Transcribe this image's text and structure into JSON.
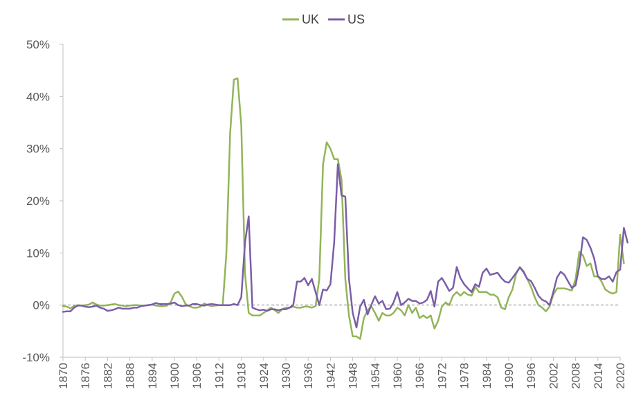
{
  "chart_data": {
    "type": "line",
    "title": "",
    "xlabel": "",
    "ylabel": "",
    "xlim": [
      1870,
      2020
    ],
    "ylim": [
      -10,
      50
    ],
    "y_ticks": [
      -10,
      0,
      10,
      20,
      30,
      40,
      50
    ],
    "y_tick_labels": [
      "-10%",
      "0%",
      "10%",
      "20%",
      "30%",
      "40%",
      "50%"
    ],
    "x_ticks": [
      1870,
      1876,
      1882,
      1888,
      1894,
      1900,
      1906,
      1912,
      1918,
      1924,
      1930,
      1936,
      1942,
      1948,
      1954,
      1960,
      1966,
      1972,
      1978,
      1984,
      1990,
      1996,
      2002,
      2008,
      2014,
      2020
    ],
    "x_tick_labels": [
      "1870",
      "1876",
      "1882",
      "1888",
      "1894",
      "1900",
      "1906",
      "1912",
      "1918",
      "1924",
      "1930",
      "1936",
      "1942",
      "1948",
      "1954",
      "1960",
      "1966",
      "1972",
      "1978",
      "1984",
      "1990",
      "1996",
      "2002",
      "2008",
      "2014",
      "2020"
    ],
    "grid": false,
    "zero_line": "dashed",
    "legend_position": "top-center",
    "series": [
      {
        "name": "UK",
        "color": "#92b558",
        "points": [
          [
            1870,
            -0.2
          ],
          [
            1871,
            -0.3
          ],
          [
            1872,
            -0.6
          ],
          [
            1873,
            -0.2
          ],
          [
            1874,
            0.0
          ],
          [
            1875,
            -0.1
          ],
          [
            1876,
            0.0
          ],
          [
            1877,
            0.1
          ],
          [
            1878,
            0.5
          ],
          [
            1879,
            0.1
          ],
          [
            1880,
            -0.1
          ],
          [
            1881,
            -0.1
          ],
          [
            1882,
            0.0
          ],
          [
            1883,
            0.1
          ],
          [
            1884,
            0.2
          ],
          [
            1885,
            0.0
          ],
          [
            1886,
            -0.1
          ],
          [
            1887,
            -0.2
          ],
          [
            1888,
            -0.1
          ],
          [
            1889,
            0.0
          ],
          [
            1890,
            0.0
          ],
          [
            1891,
            -0.1
          ],
          [
            1892,
            -0.1
          ],
          [
            1893,
            0.0
          ],
          [
            1894,
            0.1
          ],
          [
            1895,
            -0.1
          ],
          [
            1896,
            -0.2
          ],
          [
            1897,
            -0.2
          ],
          [
            1898,
            -0.1
          ],
          [
            1899,
            0.5
          ],
          [
            1900,
            2.2
          ],
          [
            1901,
            2.6
          ],
          [
            1902,
            1.6
          ],
          [
            1903,
            0.2
          ],
          [
            1904,
            -0.2
          ],
          [
            1905,
            -0.5
          ],
          [
            1906,
            -0.5
          ],
          [
            1907,
            -0.3
          ],
          [
            1908,
            0.3
          ],
          [
            1909,
            0.0
          ],
          [
            1910,
            -0.2
          ],
          [
            1911,
            -0.1
          ],
          [
            1912,
            0.0
          ],
          [
            1913,
            0.0
          ],
          [
            1914,
            10.0
          ],
          [
            1915,
            33.0
          ],
          [
            1916,
            43.2
          ],
          [
            1917,
            43.5
          ],
          [
            1918,
            34.5
          ],
          [
            1919,
            6.0
          ],
          [
            1920,
            -1.5
          ],
          [
            1921,
            -2.0
          ],
          [
            1922,
            -2.0
          ],
          [
            1923,
            -2.0
          ],
          [
            1924,
            -1.5
          ],
          [
            1925,
            -1.0
          ],
          [
            1926,
            -0.5
          ],
          [
            1927,
            -1.0
          ],
          [
            1928,
            -1.5
          ],
          [
            1929,
            -0.8
          ],
          [
            1930,
            -0.5
          ],
          [
            1931,
            -0.5
          ],
          [
            1932,
            -0.3
          ],
          [
            1933,
            -0.5
          ],
          [
            1934,
            -0.5
          ],
          [
            1935,
            -0.3
          ],
          [
            1936,
            -0.3
          ],
          [
            1937,
            -0.5
          ],
          [
            1938,
            -0.2
          ],
          [
            1939,
            5.0
          ],
          [
            1940,
            27.0
          ],
          [
            1941,
            31.2
          ],
          [
            1942,
            30.0
          ],
          [
            1943,
            28.0
          ],
          [
            1944,
            28.0
          ],
          [
            1945,
            24.0
          ],
          [
            1946,
            5.0
          ],
          [
            1947,
            -2.0
          ],
          [
            1948,
            -6.0
          ],
          [
            1949,
            -6.0
          ],
          [
            1950,
            -6.5
          ],
          [
            1951,
            -2.5
          ],
          [
            1952,
            -1.0
          ],
          [
            1953,
            -0.2
          ],
          [
            1954,
            -1.5
          ],
          [
            1955,
            -3.0
          ],
          [
            1956,
            -1.5
          ],
          [
            1957,
            -2.0
          ],
          [
            1958,
            -2.0
          ],
          [
            1959,
            -1.5
          ],
          [
            1960,
            -0.5
          ],
          [
            1961,
            -1.0
          ],
          [
            1962,
            -2.0
          ],
          [
            1963,
            0.0
          ],
          [
            1964,
            -1.5
          ],
          [
            1965,
            -0.5
          ],
          [
            1966,
            -2.5
          ],
          [
            1967,
            -2.0
          ],
          [
            1968,
            -2.5
          ],
          [
            1969,
            -2.0
          ],
          [
            1970,
            -4.5
          ],
          [
            1971,
            -3.0
          ],
          [
            1972,
            -0.3
          ],
          [
            1973,
            0.5
          ],
          [
            1974,
            0.0
          ],
          [
            1975,
            1.8
          ],
          [
            1976,
            2.5
          ],
          [
            1977,
            1.8
          ],
          [
            1978,
            2.5
          ],
          [
            1979,
            2.0
          ],
          [
            1980,
            1.8
          ],
          [
            1981,
            3.5
          ],
          [
            1982,
            2.5
          ],
          [
            1983,
            2.5
          ],
          [
            1984,
            2.5
          ],
          [
            1985,
            2.0
          ],
          [
            1986,
            2.0
          ],
          [
            1987,
            1.5
          ],
          [
            1988,
            -0.5
          ],
          [
            1989,
            -0.8
          ],
          [
            1990,
            1.5
          ],
          [
            1991,
            3.0
          ],
          [
            1992,
            6.0
          ],
          [
            1993,
            7.3
          ],
          [
            1994,
            6.5
          ],
          [
            1995,
            5.0
          ],
          [
            1996,
            3.5
          ],
          [
            1997,
            1.5
          ],
          [
            1998,
            0.0
          ],
          [
            1999,
            -0.5
          ],
          [
            2000,
            -1.2
          ],
          [
            2001,
            -0.3
          ],
          [
            2002,
            2.0
          ],
          [
            2003,
            3.2
          ],
          [
            2004,
            3.2
          ],
          [
            2005,
            3.2
          ],
          [
            2006,
            3.0
          ],
          [
            2007,
            2.8
          ],
          [
            2008,
            5.0
          ],
          [
            2009,
            10.2
          ],
          [
            2010,
            9.5
          ],
          [
            2011,
            7.5
          ],
          [
            2012,
            8.0
          ],
          [
            2013,
            5.5
          ],
          [
            2014,
            5.5
          ],
          [
            2015,
            4.5
          ],
          [
            2016,
            3.0
          ],
          [
            2017,
            2.5
          ],
          [
            2018,
            2.2
          ],
          [
            2019,
            2.5
          ],
          [
            2020,
            13.5
          ],
          [
            2021,
            8.0
          ]
        ]
      },
      {
        "name": "US",
        "color": "#7b5ea7",
        "points": [
          [
            1870,
            -1.3
          ],
          [
            1871,
            -1.2
          ],
          [
            1872,
            -1.2
          ],
          [
            1873,
            -0.5
          ],
          [
            1874,
            -0.1
          ],
          [
            1875,
            -0.1
          ],
          [
            1876,
            -0.3
          ],
          [
            1877,
            -0.4
          ],
          [
            1878,
            -0.3
          ],
          [
            1879,
            -0.1
          ],
          [
            1880,
            -0.5
          ],
          [
            1881,
            -0.7
          ],
          [
            1882,
            -1.1
          ],
          [
            1883,
            -1.0
          ],
          [
            1884,
            -0.8
          ],
          [
            1885,
            -0.5
          ],
          [
            1886,
            -0.7
          ],
          [
            1887,
            -0.7
          ],
          [
            1888,
            -0.7
          ],
          [
            1889,
            -0.5
          ],
          [
            1890,
            -0.5
          ],
          [
            1891,
            -0.2
          ],
          [
            1892,
            -0.1
          ],
          [
            1893,
            0.0
          ],
          [
            1894,
            0.1
          ],
          [
            1895,
            0.4
          ],
          [
            1896,
            0.2
          ],
          [
            1897,
            0.2
          ],
          [
            1898,
            0.2
          ],
          [
            1899,
            0.3
          ],
          [
            1900,
            0.5
          ],
          [
            1901,
            0.0
          ],
          [
            1902,
            -0.2
          ],
          [
            1903,
            -0.1
          ],
          [
            1904,
            -0.1
          ],
          [
            1905,
            0.2
          ],
          [
            1906,
            0.2
          ],
          [
            1907,
            0.0
          ],
          [
            1908,
            -0.1
          ],
          [
            1909,
            0.1
          ],
          [
            1910,
            0.2
          ],
          [
            1911,
            0.1
          ],
          [
            1912,
            0.0
          ],
          [
            1913,
            0.0
          ],
          [
            1914,
            0.0
          ],
          [
            1915,
            0.0
          ],
          [
            1916,
            0.2
          ],
          [
            1917,
            0.0
          ],
          [
            1918,
            1.5
          ],
          [
            1919,
            12.0
          ],
          [
            1920,
            17.0
          ],
          [
            1921,
            -0.5
          ],
          [
            1922,
            -0.8
          ],
          [
            1923,
            -1.0
          ],
          [
            1924,
            -0.9
          ],
          [
            1925,
            -1.1
          ],
          [
            1926,
            -0.8
          ],
          [
            1927,
            -0.8
          ],
          [
            1928,
            -1.0
          ],
          [
            1929,
            -0.8
          ],
          [
            1930,
            -0.8
          ],
          [
            1931,
            -0.5
          ],
          [
            1932,
            0.0
          ],
          [
            1933,
            4.5
          ],
          [
            1934,
            4.5
          ],
          [
            1935,
            5.2
          ],
          [
            1936,
            3.8
          ],
          [
            1937,
            5.0
          ],
          [
            1938,
            2.5
          ],
          [
            1939,
            0.0
          ],
          [
            1940,
            3.0
          ],
          [
            1941,
            2.8
          ],
          [
            1942,
            4.0
          ],
          [
            1943,
            12.0
          ],
          [
            1944,
            27.0
          ],
          [
            1945,
            21.0
          ],
          [
            1946,
            20.8
          ],
          [
            1947,
            5.0
          ],
          [
            1948,
            -1.5
          ],
          [
            1949,
            -4.3
          ],
          [
            1950,
            -0.3
          ],
          [
            1951,
            1.0
          ],
          [
            1952,
            -1.8
          ],
          [
            1953,
            0.0
          ],
          [
            1954,
            1.7
          ],
          [
            1955,
            0.3
          ],
          [
            1956,
            0.8
          ],
          [
            1957,
            -0.8
          ],
          [
            1958,
            -0.7
          ],
          [
            1959,
            0.5
          ],
          [
            1960,
            2.5
          ],
          [
            1961,
            0.0
          ],
          [
            1962,
            0.5
          ],
          [
            1963,
            1.2
          ],
          [
            1964,
            0.8
          ],
          [
            1965,
            0.8
          ],
          [
            1966,
            0.3
          ],
          [
            1967,
            0.5
          ],
          [
            1968,
            1.0
          ],
          [
            1969,
            2.7
          ],
          [
            1970,
            -0.3
          ],
          [
            1971,
            4.5
          ],
          [
            1972,
            5.2
          ],
          [
            1973,
            4.0
          ],
          [
            1974,
            2.7
          ],
          [
            1975,
            3.3
          ],
          [
            1976,
            7.3
          ],
          [
            1977,
            5.2
          ],
          [
            1978,
            4.0
          ],
          [
            1979,
            3.2
          ],
          [
            1980,
            2.5
          ],
          [
            1981,
            4.0
          ],
          [
            1982,
            3.5
          ],
          [
            1983,
            6.2
          ],
          [
            1984,
            7.0
          ],
          [
            1985,
            5.8
          ],
          [
            1986,
            6.0
          ],
          [
            1987,
            6.2
          ],
          [
            1988,
            5.2
          ],
          [
            1989,
            4.5
          ],
          [
            1990,
            4.3
          ],
          [
            1991,
            5.2
          ],
          [
            1992,
            6.2
          ],
          [
            1993,
            7.2
          ],
          [
            1994,
            6.3
          ],
          [
            1995,
            5.0
          ],
          [
            1996,
            4.6
          ],
          [
            1997,
            3.3
          ],
          [
            1998,
            1.8
          ],
          [
            1999,
            1.0
          ],
          [
            2000,
            0.7
          ],
          [
            2001,
            0.0
          ],
          [
            2002,
            2.5
          ],
          [
            2003,
            5.3
          ],
          [
            2004,
            6.4
          ],
          [
            2005,
            5.8
          ],
          [
            2006,
            4.5
          ],
          [
            2007,
            3.3
          ],
          [
            2008,
            3.8
          ],
          [
            2009,
            7.5
          ],
          [
            2010,
            13.0
          ],
          [
            2011,
            12.5
          ],
          [
            2012,
            11.0
          ],
          [
            2013,
            9.0
          ],
          [
            2014,
            5.5
          ],
          [
            2015,
            5.0
          ],
          [
            2016,
            5.0
          ],
          [
            2017,
            5.5
          ],
          [
            2018,
            4.5
          ],
          [
            2019,
            6.3
          ],
          [
            2020,
            6.8
          ],
          [
            2021,
            14.8
          ],
          [
            2022,
            12.0
          ]
        ]
      }
    ]
  }
}
